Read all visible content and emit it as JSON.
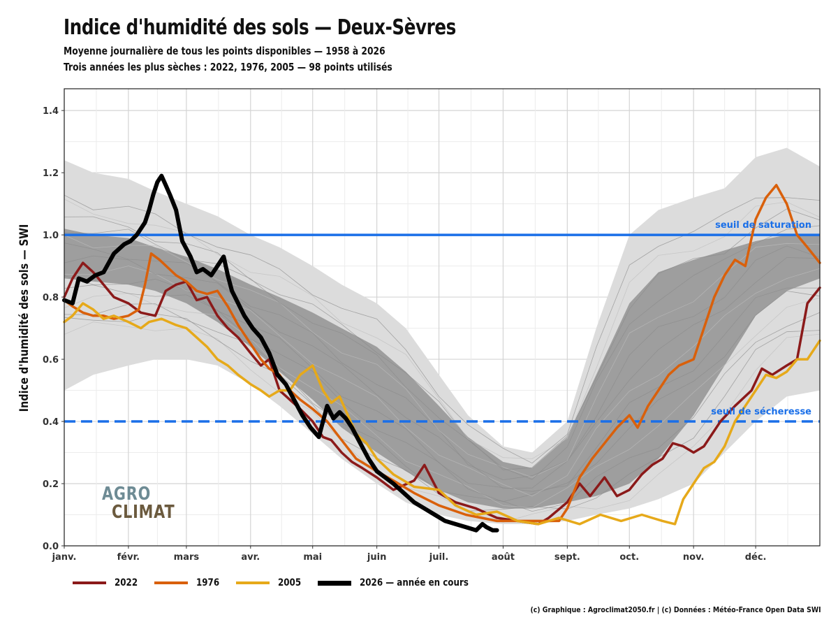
{
  "title": "Indice d'humidité des sols — Deux-Sèvres",
  "subtitle1": "Moyenne journalière de tous les points disponibles — 1958 à 2026",
  "subtitle2": "Trois années les plus sèches : 2022, 1976, 2005 — 98 points utilisés",
  "credit": "(c) Graphique : Agroclimat2050.fr | (c) Données : Météo-France Open Data SWI",
  "logo": {
    "top": "AGRO",
    "bottom": "CLIMAT"
  },
  "legend": [
    {
      "label": "2022",
      "color": "#8b1a1a"
    },
    {
      "label": "1976",
      "color": "#d9600b"
    },
    {
      "label": "2005",
      "color": "#e6a91a"
    },
    {
      "label": "2026 — année en cours",
      "color": "#000000"
    }
  ],
  "chart_data": {
    "type": "line",
    "ylabel": "Indice d'humidité des sols — SWI",
    "ylim": [
      0,
      1.47
    ],
    "yticks": [
      "0.0",
      "0.2",
      "0.4",
      "0.6",
      "0.8",
      "1.0",
      "1.2",
      "1.4"
    ],
    "ytick_values": [
      0,
      0.2,
      0.4,
      0.6,
      0.8,
      1.0,
      1.2,
      1.4
    ],
    "xlim_day": [
      1,
      366
    ],
    "months": [
      {
        "label": "janv.",
        "day": 1
      },
      {
        "label": "févr.",
        "day": 32
      },
      {
        "label": "mars",
        "day": 60
      },
      {
        "label": "avr.",
        "day": 91
      },
      {
        "label": "mai",
        "day": 121
      },
      {
        "label": "juin",
        "day": 152
      },
      {
        "label": "juil.",
        "day": 182
      },
      {
        "label": "août",
        "day": 213
      },
      {
        "label": "sept.",
        "day": 244
      },
      {
        "label": "oct.",
        "day": 274
      },
      {
        "label": "nov.",
        "day": 305
      },
      {
        "label": "déc.",
        "day": 335
      }
    ],
    "thresholds": [
      {
        "label": "seuil de saturation",
        "value": 1.0,
        "color": "#1a6fe8",
        "style": "solid"
      },
      {
        "label": "seuil de sécheresse",
        "value": 0.4,
        "color": "#1a6fe8",
        "style": "dashed"
      }
    ],
    "envelope_outer": {
      "day": [
        1,
        15,
        32,
        45,
        60,
        75,
        91,
        105,
        121,
        135,
        152,
        166,
        182,
        196,
        213,
        227,
        244,
        258,
        274,
        288,
        305,
        320,
        335,
        350,
        366
      ],
      "upper": [
        1.24,
        1.2,
        1.18,
        1.14,
        1.1,
        1.06,
        1.0,
        0.96,
        0.9,
        0.84,
        0.78,
        0.7,
        0.55,
        0.42,
        0.32,
        0.3,
        0.4,
        0.7,
        1.0,
        1.08,
        1.12,
        1.15,
        1.25,
        1.28,
        1.22
      ],
      "lower": [
        0.5,
        0.55,
        0.58,
        0.6,
        0.6,
        0.58,
        0.52,
        0.45,
        0.36,
        0.28,
        0.2,
        0.14,
        0.1,
        0.08,
        0.07,
        0.07,
        0.08,
        0.1,
        0.12,
        0.15,
        0.2,
        0.3,
        0.4,
        0.48,
        0.5
      ]
    },
    "envelope_inner": {
      "day": [
        1,
        15,
        32,
        45,
        60,
        75,
        91,
        105,
        121,
        135,
        152,
        166,
        182,
        196,
        213,
        227,
        244,
        258,
        274,
        288,
        305,
        320,
        335,
        350,
        366
      ],
      "upper": [
        1.02,
        1.0,
        0.99,
        0.96,
        0.93,
        0.89,
        0.84,
        0.8,
        0.75,
        0.7,
        0.64,
        0.56,
        0.45,
        0.35,
        0.27,
        0.25,
        0.35,
        0.55,
        0.78,
        0.88,
        0.92,
        0.95,
        0.98,
        1.0,
        1.0
      ],
      "lower": [
        0.86,
        0.85,
        0.84,
        0.82,
        0.78,
        0.72,
        0.64,
        0.56,
        0.47,
        0.38,
        0.3,
        0.24,
        0.18,
        0.14,
        0.12,
        0.12,
        0.14,
        0.16,
        0.2,
        0.28,
        0.42,
        0.58,
        0.74,
        0.82,
        0.86
      ]
    },
    "series": [
      {
        "name": "2022",
        "color": "#8b1a1a",
        "width": 3.5,
        "x": [
          1,
          5,
          10,
          15,
          20,
          25,
          32,
          38,
          45,
          50,
          55,
          60,
          65,
          70,
          75,
          80,
          85,
          91,
          96,
          100,
          105,
          110,
          115,
          121,
          126,
          130,
          135,
          140,
          145,
          152,
          160,
          170,
          175,
          182,
          190,
          200,
          210,
          220,
          230,
          235,
          244,
          250,
          255,
          262,
          268,
          274,
          280,
          285,
          290,
          295,
          300,
          305,
          310,
          318,
          325,
          333,
          338,
          343,
          350,
          355,
          360,
          366
        ],
        "y": [
          0.8,
          0.86,
          0.91,
          0.88,
          0.84,
          0.8,
          0.78,
          0.75,
          0.74,
          0.82,
          0.84,
          0.85,
          0.79,
          0.8,
          0.74,
          0.7,
          0.67,
          0.62,
          0.58,
          0.6,
          0.5,
          0.47,
          0.44,
          0.4,
          0.35,
          0.34,
          0.3,
          0.27,
          0.25,
          0.22,
          0.18,
          0.21,
          0.26,
          0.17,
          0.14,
          0.12,
          0.09,
          0.08,
          0.07,
          0.09,
          0.14,
          0.2,
          0.16,
          0.22,
          0.16,
          0.18,
          0.23,
          0.26,
          0.28,
          0.33,
          0.32,
          0.3,
          0.32,
          0.4,
          0.45,
          0.5,
          0.57,
          0.55,
          0.58,
          0.6,
          0.78,
          0.83
        ]
      },
      {
        "name": "1976",
        "color": "#d9600b",
        "width": 3.5,
        "x": [
          1,
          5,
          10,
          15,
          20,
          25,
          32,
          37,
          40,
          43,
          47,
          55,
          60,
          65,
          70,
          75,
          80,
          85,
          91,
          96,
          100,
          105,
          110,
          115,
          121,
          128,
          135,
          142,
          152,
          160,
          170,
          182,
          195,
          210,
          225,
          240,
          244,
          250,
          256,
          262,
          268,
          274,
          278,
          283,
          288,
          293,
          298,
          305,
          310,
          315,
          320,
          325,
          330,
          335,
          340,
          345,
          350,
          355,
          360,
          366
        ],
        "y": [
          0.79,
          0.77,
          0.75,
          0.74,
          0.74,
          0.73,
          0.74,
          0.76,
          0.84,
          0.94,
          0.92,
          0.87,
          0.85,
          0.82,
          0.81,
          0.82,
          0.77,
          0.71,
          0.65,
          0.6,
          0.57,
          0.55,
          0.5,
          0.47,
          0.44,
          0.4,
          0.34,
          0.28,
          0.24,
          0.21,
          0.17,
          0.13,
          0.1,
          0.08,
          0.08,
          0.08,
          0.12,
          0.22,
          0.28,
          0.33,
          0.38,
          0.42,
          0.38,
          0.45,
          0.5,
          0.55,
          0.58,
          0.6,
          0.7,
          0.8,
          0.87,
          0.92,
          0.9,
          1.05,
          1.12,
          1.16,
          1.1,
          1.0,
          0.96,
          0.91
        ]
      },
      {
        "name": "2005",
        "color": "#e6a91a",
        "width": 3.5,
        "x": [
          1,
          5,
          10,
          15,
          20,
          25,
          32,
          38,
          42,
          48,
          55,
          60,
          65,
          70,
          75,
          80,
          85,
          91,
          96,
          100,
          105,
          110,
          115,
          121,
          126,
          130,
          134,
          138,
          142,
          147,
          152,
          160,
          170,
          182,
          190,
          200,
          210,
          220,
          230,
          240,
          250,
          260,
          270,
          280,
          285,
          290,
          296,
          300,
          305,
          310,
          315,
          320,
          325,
          330,
          335,
          340,
          345,
          350,
          355,
          360,
          366
        ],
        "y": [
          0.72,
          0.74,
          0.78,
          0.76,
          0.73,
          0.74,
          0.72,
          0.7,
          0.72,
          0.73,
          0.71,
          0.7,
          0.67,
          0.64,
          0.6,
          0.58,
          0.55,
          0.52,
          0.5,
          0.48,
          0.5,
          0.5,
          0.55,
          0.58,
          0.5,
          0.46,
          0.48,
          0.42,
          0.36,
          0.33,
          0.28,
          0.23,
          0.19,
          0.18,
          0.13,
          0.1,
          0.11,
          0.08,
          0.07,
          0.09,
          0.07,
          0.1,
          0.08,
          0.1,
          0.09,
          0.08,
          0.07,
          0.15,
          0.2,
          0.25,
          0.27,
          0.32,
          0.4,
          0.45,
          0.5,
          0.55,
          0.54,
          0.56,
          0.6,
          0.6,
          0.66
        ]
      },
      {
        "name": "2026 — année en cours",
        "color": "#000000",
        "width": 6,
        "x": [
          1,
          5,
          8,
          12,
          16,
          20,
          25,
          30,
          33,
          36,
          40,
          42,
          44,
          46,
          48,
          50,
          52,
          55,
          58,
          62,
          65,
          68,
          72,
          75,
          78,
          80,
          82,
          85,
          88,
          92,
          96,
          100,
          104,
          108,
          112,
          116,
          120,
          124,
          126,
          128,
          131,
          134,
          137,
          140,
          144,
          148,
          152,
          156,
          160,
          165,
          170,
          175,
          180,
          185,
          190,
          195,
          200,
          203,
          205,
          208,
          210
        ],
        "y": [
          0.79,
          0.78,
          0.86,
          0.85,
          0.87,
          0.88,
          0.94,
          0.97,
          0.98,
          1.0,
          1.04,
          1.08,
          1.13,
          1.17,
          1.19,
          1.16,
          1.13,
          1.08,
          0.98,
          0.93,
          0.88,
          0.89,
          0.87,
          0.9,
          0.93,
          0.87,
          0.82,
          0.78,
          0.74,
          0.7,
          0.67,
          0.62,
          0.55,
          0.52,
          0.47,
          0.42,
          0.38,
          0.35,
          0.4,
          0.45,
          0.41,
          0.43,
          0.41,
          0.38,
          0.33,
          0.28,
          0.24,
          0.22,
          0.2,
          0.17,
          0.14,
          0.12,
          0.1,
          0.08,
          0.07,
          0.06,
          0.05,
          0.07,
          0.06,
          0.05,
          0.05
        ]
      }
    ]
  }
}
